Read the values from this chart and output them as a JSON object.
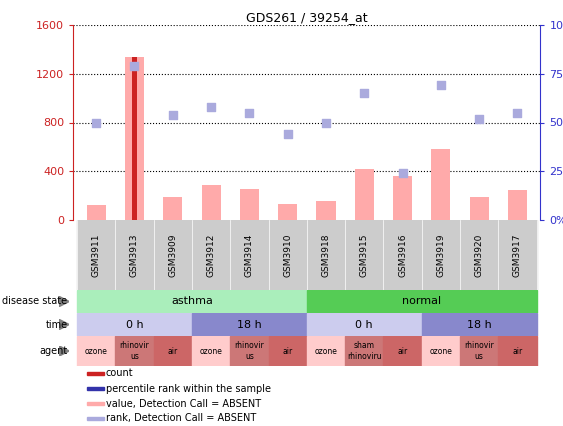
{
  "title": "GDS261 / 39254_at",
  "samples": [
    "GSM3911",
    "GSM3913",
    "GSM3909",
    "GSM3912",
    "GSM3914",
    "GSM3910",
    "GSM3918",
    "GSM3915",
    "GSM3916",
    "GSM3919",
    "GSM3920",
    "GSM3917"
  ],
  "bar_values": [
    120,
    1340,
    190,
    285,
    255,
    130,
    155,
    420,
    365,
    580,
    185,
    250
  ],
  "rank_values": [
    50,
    79,
    54,
    58,
    55,
    44,
    50,
    65,
    24,
    69,
    52,
    55
  ],
  "bar_color": "#cc2222",
  "rank_color": "#3333aa",
  "bar_absent_color": "#ffaaaa",
  "rank_absent_color": "#aaaadd",
  "count_bar_index": 1,
  "ylim_left": [
    0,
    1600
  ],
  "ylim_right": [
    0,
    100
  ],
  "yticks_left": [
    0,
    400,
    800,
    1200,
    1600
  ],
  "ytick_labels_left": [
    "0",
    "400",
    "800",
    "1200",
    "1600"
  ],
  "yticks_right": [
    0,
    25,
    50,
    75,
    100
  ],
  "ytick_labels_right": [
    "0%",
    "25%",
    "50%",
    "75%",
    "100%"
  ],
  "disease_state_asthma_color": "#aaeebb",
  "disease_state_normal_color": "#55cc55",
  "time_0h_color": "#ccccee",
  "time_18h_color": "#8888cc",
  "agent_ozone_color": "#ffcccc",
  "agent_rhinovirus_color": "#cc7777",
  "agent_air_color": "#cc6666",
  "agent_sham_color": "#cc7777",
  "bg_color": "#ffffff",
  "axis_left_color": "#cc2222",
  "axis_right_color": "#3333cc",
  "legend": [
    {
      "label": "count",
      "color": "#cc2222"
    },
    {
      "label": "percentile rank within the sample",
      "color": "#3333aa"
    },
    {
      "label": "value, Detection Call = ABSENT",
      "color": "#ffaaaa"
    },
    {
      "label": "rank, Detection Call = ABSENT",
      "color": "#aaaadd"
    }
  ],
  "row_labels": [
    "disease state",
    "time",
    "agent"
  ],
  "time_blocks": [
    {
      "start": 0,
      "end": 3,
      "label": "0 h"
    },
    {
      "start": 3,
      "end": 6,
      "label": "18 h"
    },
    {
      "start": 6,
      "end": 9,
      "label": "0 h"
    },
    {
      "start": 9,
      "end": 12,
      "label": "18 h"
    }
  ],
  "agent_blocks": [
    {
      "idx": 0,
      "label": "ozone",
      "type": "ozone"
    },
    {
      "idx": 1,
      "label": "rhinovir\nus",
      "type": "rhinovirus"
    },
    {
      "idx": 2,
      "label": "air",
      "type": "air"
    },
    {
      "idx": 3,
      "label": "ozone",
      "type": "ozone"
    },
    {
      "idx": 4,
      "label": "rhinovir\nus",
      "type": "rhinovirus"
    },
    {
      "idx": 5,
      "label": "air",
      "type": "air"
    },
    {
      "idx": 6,
      "label": "ozone",
      "type": "ozone"
    },
    {
      "idx": 7,
      "label": "sham\nrhinoviru",
      "type": "rhinovirus"
    },
    {
      "idx": 8,
      "label": "air",
      "type": "air"
    },
    {
      "idx": 9,
      "label": "ozone",
      "type": "ozone"
    },
    {
      "idx": 10,
      "label": "rhinovir\nus",
      "type": "rhinovirus"
    },
    {
      "idx": 11,
      "label": "air",
      "type": "air"
    }
  ]
}
